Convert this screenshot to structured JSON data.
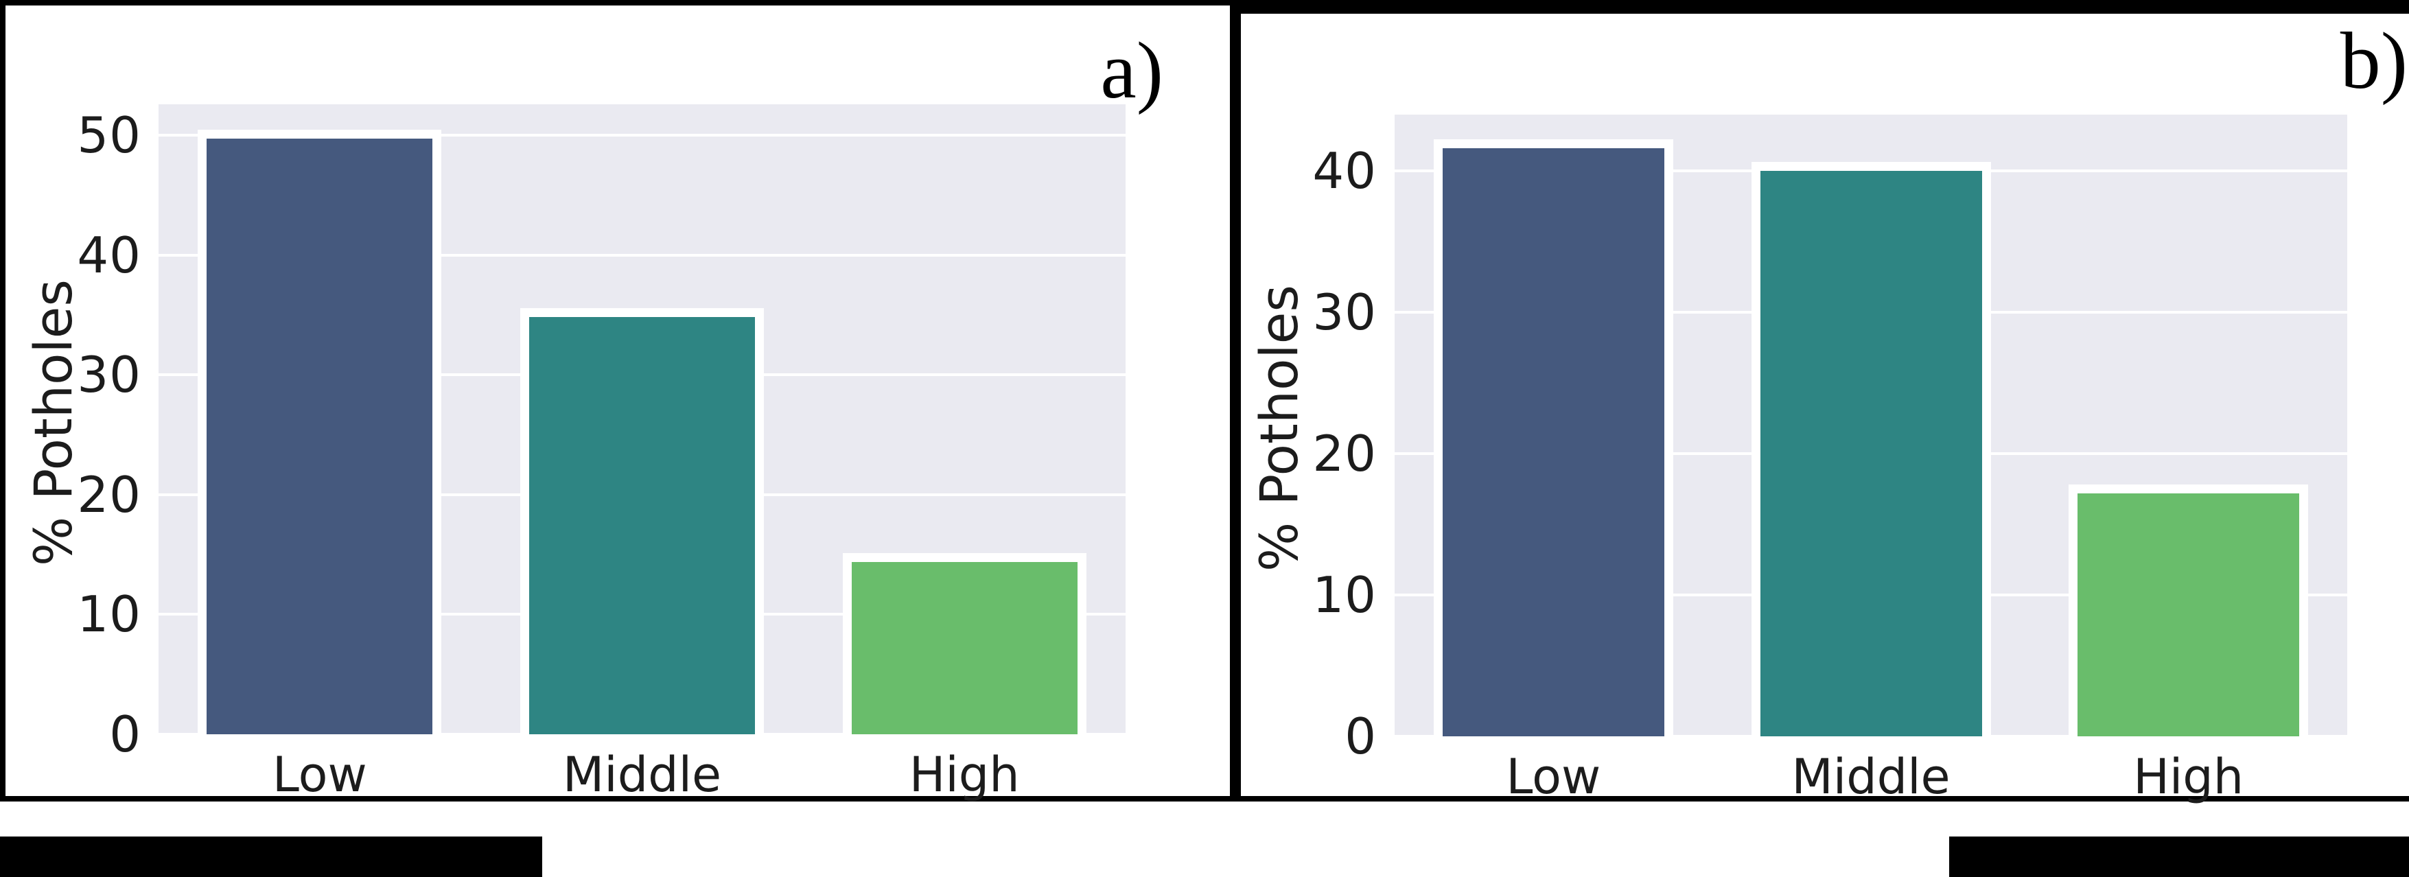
{
  "figure": {
    "panels": [
      {
        "id": "a",
        "label": "a)"
      },
      {
        "id": "b",
        "label": "b)"
      }
    ],
    "redacted_regions": [
      {
        "position": "bottom-left"
      },
      {
        "position": "bottom-right"
      }
    ]
  },
  "chart_data": [
    {
      "type": "bar",
      "panel_label": "a)",
      "title": "",
      "xlabel": "",
      "ylabel": "% Potholes",
      "categories": [
        "Low",
        "Middle",
        "High"
      ],
      "values": [
        50.1,
        35.2,
        14.7
      ],
      "yticks": [
        0,
        10,
        20,
        30,
        40,
        50
      ],
      "ylim": [
        0,
        52.6
      ],
      "grid": true,
      "legend": false,
      "bar_colors": [
        "#45597E",
        "#2E8583",
        "#69BD6B"
      ],
      "bar_edge_color": "#FFFFFF",
      "plot_background": "#EAEAF1",
      "grid_color": "#FFFFFF",
      "text_color": "#1C1C1C"
    },
    {
      "type": "bar",
      "panel_label": "b)",
      "title": "",
      "xlabel": "",
      "ylabel": "% Potholes",
      "categories": [
        "Low",
        "Middle",
        "High"
      ],
      "values": [
        41.9,
        40.3,
        17.5
      ],
      "yticks": [
        0,
        10,
        20,
        30,
        40
      ],
      "ylim": [
        0,
        44.0
      ],
      "grid": true,
      "legend": false,
      "bar_colors": [
        "#45597E",
        "#2E8583",
        "#69BD6B"
      ],
      "bar_edge_color": "#FFFFFF",
      "plot_background": "#EAEAF1",
      "grid_color": "#FFFFFF",
      "text_color": "#1C1C1C"
    }
  ]
}
